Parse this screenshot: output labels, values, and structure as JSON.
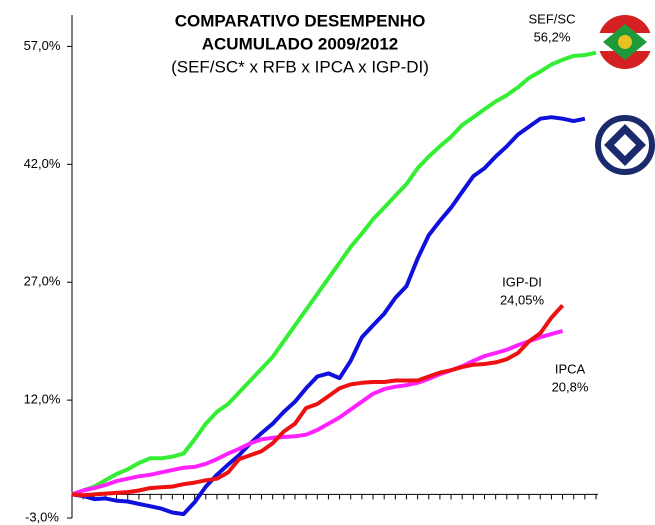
{
  "chart_data": {
    "type": "line",
    "title_lines": [
      "COMPARATIVO DESEMPENHO",
      "ACUMULADO 2009/2012"
    ],
    "subtitle": "(SEF/SC* x RFB x IPCA x IGP-DI)",
    "annotations": [
      {
        "lines": [
          "SEF/SC",
          "56,2%"
        ]
      },
      {
        "lines": [
          "IGP-DI",
          "24,05%"
        ]
      },
      {
        "lines": [
          "IPCA",
          "20,8%"
        ]
      }
    ],
    "categories": [
      null,
      null,
      null,
      null,
      null,
      null,
      null,
      null,
      null,
      null,
      null,
      null,
      null,
      null,
      null,
      null,
      null,
      null,
      null,
      null,
      null,
      null,
      null,
      null,
      null,
      null,
      null,
      null,
      null,
      null,
      null,
      null,
      null,
      null,
      null,
      null,
      null,
      null,
      null,
      null,
      null,
      null,
      null,
      null,
      null,
      null,
      null,
      null
    ],
    "series": [
      {
        "color": "#33ee33",
        "values": [
          0,
          0.5,
          1,
          1.8,
          2.6,
          3.2,
          4,
          4.6,
          4.6,
          4.8,
          5.2,
          7,
          9,
          10.5,
          11.5,
          13,
          14.5,
          16,
          17.5,
          19.5,
          21.5,
          23.5,
          25.5,
          27.5,
          29.5,
          31.5,
          33.2,
          35,
          36.5,
          38,
          39.5,
          41.5,
          43,
          44.3,
          45.5,
          47,
          48,
          49,
          50,
          50.8,
          51.8,
          53,
          53.8,
          54.7,
          55.3,
          55.8,
          55.9,
          56.2
        ]
      },
      {
        "color": "#1010dd",
        "values": [
          0,
          -0.2,
          -0.6,
          -0.5,
          -0.8,
          -0.9,
          -1.2,
          -1.5,
          -1.8,
          -2.3,
          -2.5,
          -1,
          1,
          2.5,
          3.8,
          5,
          6.5,
          7.8,
          9,
          10.5,
          11.8,
          13.5,
          15,
          15.4,
          14.8,
          17,
          20,
          21.5,
          23,
          25,
          26.5,
          30,
          33,
          34.8,
          36.5,
          38.5,
          40.5,
          41.5,
          43,
          44.3,
          45.8,
          46.8,
          47.8,
          48,
          47.8,
          47.5,
          47.8,
          null
        ]
      },
      {
        "color": "#ff22ff",
        "values": [
          0,
          0.5,
          0.8,
          1.2,
          1.7,
          2,
          2.3,
          2.5,
          2.8,
          3.1,
          3.4,
          3.5,
          3.9,
          4.5,
          5.2,
          5.8,
          6.5,
          7,
          7.2,
          7.3,
          7.4,
          7.6,
          8.2,
          9,
          9.8,
          10.8,
          11.8,
          12.8,
          13.4,
          13.7,
          13.9,
          14.2,
          14.7,
          15.3,
          15.8,
          16.3,
          17,
          17.6,
          18,
          18.4,
          19,
          19.5,
          20,
          20.4,
          20.8,
          null,
          null,
          null
        ]
      },
      {
        "color": "#ee1111",
        "values": [
          0,
          -0.1,
          0,
          0.1,
          0.2,
          0.3,
          0.5,
          0.8,
          0.9,
          1,
          1.3,
          1.5,
          1.8,
          2,
          2.8,
          4.5,
          5,
          5.5,
          6.5,
          8,
          9,
          11,
          11.5,
          12.5,
          13.5,
          14,
          14.2,
          14.3,
          14.3,
          14.5,
          14.5,
          14.5,
          15,
          15.5,
          15.8,
          16.2,
          16.5,
          16.6,
          16.8,
          17.2,
          18,
          19.5,
          20.5,
          22.5,
          24.05,
          null,
          null,
          null
        ]
      }
    ],
    "ylim": [
      -3,
      61
    ],
    "yticks": [
      {
        "value": -3,
        "label": "-3,0%"
      },
      {
        "value": 12,
        "label": "12,0%"
      },
      {
        "value": 27,
        "label": "27,0%"
      },
      {
        "value": 42,
        "label": "42,0%"
      },
      {
        "value": 57,
        "label": "57,0%"
      }
    ]
  }
}
